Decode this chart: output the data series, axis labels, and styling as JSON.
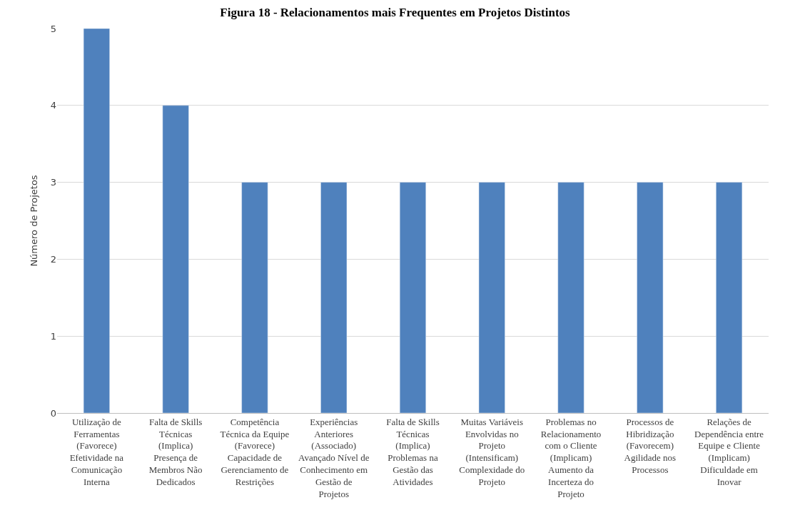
{
  "chart_data": {
    "type": "bar",
    "title": "Figura 18 - Relacionamentos mais Frequentes em Projetos Distintos",
    "ylabel": "Número de Projetos",
    "categories": [
      "Utilização de Ferramentas (Favorece) Efetividade na Comunicação Interna",
      "Falta de Skills Técnicas (Implica) Presença de Membros Não Dedicados",
      "Competência Técnica da Equipe (Favorece) Capacidade de Gerenciamento de Restrições",
      "Experiências Anteriores (Associado) Avançado Nível de Conhecimento em Gestão de Projetos",
      "Falta de Skills Técnicas (Implica) Problemas na Gestão das Atividades",
      "Muitas Variáveis Envolvidas no Projeto (Intensificam) Complexidade do Projeto",
      "Problemas no Relacionamento com o Cliente (Implicam) Aumento da Incerteza do Projeto",
      "Processos de Hibridização (Favorecem) Agilidade nos Processos",
      "Relações de Dependência entre Equipe e Cliente (Implicam) Dificuldade em Inovar"
    ],
    "values": [
      5,
      4,
      3,
      3,
      3,
      3,
      3,
      3,
      3
    ],
    "color": "#4f81bd",
    "ylim": [
      0,
      5
    ],
    "yticks": [
      0,
      1,
      2,
      3,
      4,
      5
    ],
    "grid": "y"
  }
}
